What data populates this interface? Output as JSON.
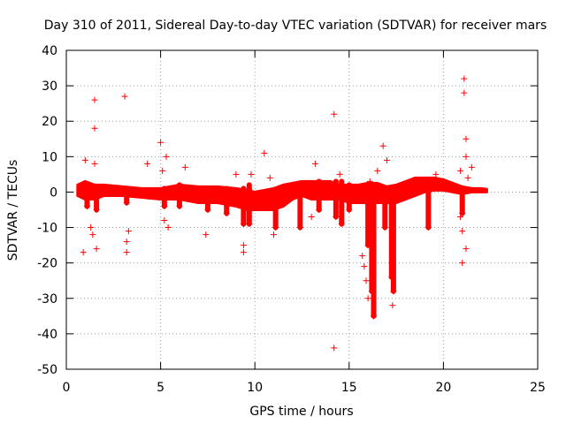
{
  "chart_data": {
    "type": "scatter",
    "title": "Day 310 of 2011, Sidereal Day-to-day VTEC variation (SDTVAR) for receiver mars",
    "xlabel": "GPS time / hours",
    "ylabel": "SDTVAR / TECUs",
    "xlim": [
      0,
      25
    ],
    "ylim": [
      -50,
      40
    ],
    "xticks": [
      0,
      5,
      10,
      15,
      20,
      25
    ],
    "yticks": [
      40,
      30,
      20,
      10,
      0,
      -10,
      -20,
      -30,
      -40,
      -50
    ],
    "grid": true,
    "marker": "+",
    "color": "#ff0000",
    "band": {
      "name": "dense SDTVAR band",
      "x": [
        0.6,
        1.0,
        1.5,
        2.0,
        3.0,
        4.0,
        5.0,
        6.0,
        7.0,
        8.0,
        9.0,
        9.6,
        10.0,
        10.5,
        11.0,
        11.5,
        12.0,
        12.5,
        13.0,
        13.5,
        14.0,
        14.5,
        15.0,
        15.5,
        16.0,
        16.5,
        17.0,
        17.5,
        18.0,
        18.5,
        19.0,
        19.5,
        20.0,
        20.5,
        21.0,
        21.5,
        22.0,
        22.3
      ],
      "upper": [
        2,
        3,
        2,
        2,
        1.5,
        1,
        1,
        2,
        1.5,
        1.5,
        1,
        0.5,
        0,
        0.5,
        1,
        2,
        2.5,
        3,
        3,
        3,
        3,
        2,
        2,
        2,
        2.5,
        2.5,
        1.5,
        2,
        3,
        4,
        4,
        4,
        3.5,
        2.5,
        1.5,
        1,
        1,
        0.8
      ],
      "lower": [
        -1,
        -2,
        -2,
        -1,
        -1,
        -1.5,
        -2,
        -2,
        -3,
        -3,
        -4,
        -5,
        -5,
        -5,
        -5,
        -4,
        -2,
        -1,
        -2,
        -2,
        -2,
        -2,
        -3,
        -3,
        -3,
        -3,
        -3,
        -3,
        -2,
        -1,
        0,
        0.5,
        0.5,
        0,
        -0.5,
        0,
        0,
        0
      ]
    },
    "dips": [
      {
        "x": 1.1,
        "y": [
          2,
          -4
        ]
      },
      {
        "x": 1.6,
        "y": [
          1,
          -5
        ]
      },
      {
        "x": 3.2,
        "y": [
          1,
          -3
        ]
      },
      {
        "x": 5.2,
        "y": [
          1,
          -4
        ]
      },
      {
        "x": 6.0,
        "y": [
          2,
          -4
        ]
      },
      {
        "x": 7.5,
        "y": [
          1,
          -5
        ]
      },
      {
        "x": 8.5,
        "y": [
          1,
          -6
        ]
      },
      {
        "x": 9.4,
        "y": [
          1,
          -9
        ]
      },
      {
        "x": 9.7,
        "y": [
          2,
          -9
        ]
      },
      {
        "x": 11.1,
        "y": [
          0,
          -10
        ]
      },
      {
        "x": 12.4,
        "y": [
          1,
          -10
        ]
      },
      {
        "x": 13.4,
        "y": [
          3,
          -5
        ]
      },
      {
        "x": 14.3,
        "y": [
          3,
          -7
        ]
      },
      {
        "x": 14.6,
        "y": [
          3,
          -9
        ]
      },
      {
        "x": 15.0,
        "y": [
          2,
          -5
        ]
      },
      {
        "x": 16.0,
        "y": [
          1,
          -15
        ]
      },
      {
        "x": 16.2,
        "y": [
          0,
          -28
        ]
      },
      {
        "x": 16.3,
        "y": [
          0,
          -35
        ]
      },
      {
        "x": 16.9,
        "y": [
          1,
          -10
        ]
      },
      {
        "x": 17.25,
        "y": [
          0,
          -24
        ]
      },
      {
        "x": 17.35,
        "y": [
          0,
          -28
        ]
      },
      {
        "x": 19.2,
        "y": [
          2,
          -10
        ]
      },
      {
        "x": 21.0,
        "y": [
          1,
          -6
        ]
      }
    ],
    "outliers": [
      {
        "x": 1.0,
        "y": 9
      },
      {
        "x": 0.9,
        "y": -17
      },
      {
        "x": 1.3,
        "y": -10
      },
      {
        "x": 1.4,
        "y": -12
      },
      {
        "x": 1.5,
        "y": 26
      },
      {
        "x": 1.5,
        "y": 18
      },
      {
        "x": 1.5,
        "y": 8
      },
      {
        "x": 1.6,
        "y": -16
      },
      {
        "x": 3.1,
        "y": 27
      },
      {
        "x": 3.2,
        "y": -14
      },
      {
        "x": 3.2,
        "y": -17
      },
      {
        "x": 3.3,
        "y": -11
      },
      {
        "x": 4.3,
        "y": 8
      },
      {
        "x": 5.0,
        "y": 14
      },
      {
        "x": 5.1,
        "y": 6
      },
      {
        "x": 5.2,
        "y": -8
      },
      {
        "x": 5.3,
        "y": 10
      },
      {
        "x": 5.4,
        "y": -10
      },
      {
        "x": 6.3,
        "y": 7
      },
      {
        "x": 7.4,
        "y": -12
      },
      {
        "x": 9.0,
        "y": 5
      },
      {
        "x": 9.4,
        "y": -15
      },
      {
        "x": 9.4,
        "y": -17
      },
      {
        "x": 9.8,
        "y": 5
      },
      {
        "x": 10.5,
        "y": 11
      },
      {
        "x": 10.8,
        "y": 4
      },
      {
        "x": 11.0,
        "y": -12
      },
      {
        "x": 13.2,
        "y": 8
      },
      {
        "x": 13.0,
        "y": -7
      },
      {
        "x": 14.2,
        "y": 22
      },
      {
        "x": 14.2,
        "y": -44
      },
      {
        "x": 14.5,
        "y": 5
      },
      {
        "x": 15.7,
        "y": -18
      },
      {
        "x": 15.8,
        "y": -21
      },
      {
        "x": 15.9,
        "y": -25
      },
      {
        "x": 16.0,
        "y": -30
      },
      {
        "x": 16.1,
        "y": 3
      },
      {
        "x": 16.5,
        "y": 6
      },
      {
        "x": 16.8,
        "y": 13
      },
      {
        "x": 17.0,
        "y": 9
      },
      {
        "x": 17.3,
        "y": -32
      },
      {
        "x": 19.6,
        "y": 5
      },
      {
        "x": 20.9,
        "y": -7
      },
      {
        "x": 20.9,
        "y": 6
      },
      {
        "x": 21.0,
        "y": -11
      },
      {
        "x": 21.0,
        "y": -20
      },
      {
        "x": 21.1,
        "y": 32
      },
      {
        "x": 21.1,
        "y": 28
      },
      {
        "x": 21.2,
        "y": 15
      },
      {
        "x": 21.2,
        "y": 10
      },
      {
        "x": 21.3,
        "y": 4
      },
      {
        "x": 21.2,
        "y": -16
      },
      {
        "x": 21.5,
        "y": 7
      }
    ]
  }
}
